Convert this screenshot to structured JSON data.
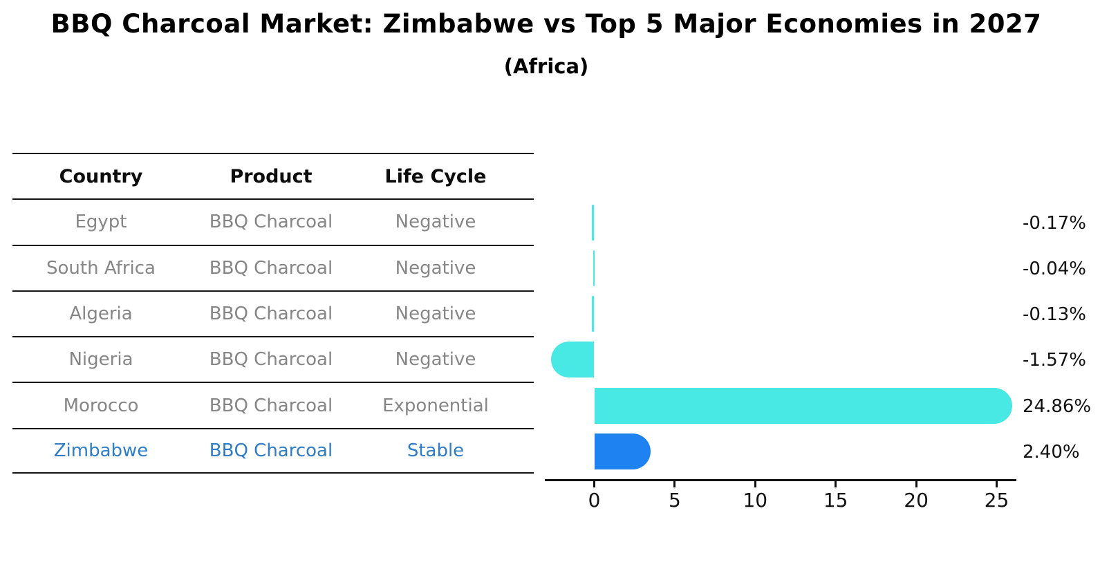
{
  "title": "BBQ Charcoal Market: Zimbabwe vs Top 5 Major Economies in 2027",
  "subtitle": "(Africa)",
  "table": {
    "headers": [
      "Country",
      "Product",
      "Life Cycle"
    ],
    "rows": [
      {
        "country": "Egypt",
        "product": "BBQ Charcoal",
        "life_cycle": "Negative",
        "highlight": false
      },
      {
        "country": "South Africa",
        "product": "BBQ Charcoal",
        "life_cycle": "Negative",
        "highlight": false
      },
      {
        "country": "Algeria",
        "product": "BBQ Charcoal",
        "life_cycle": "Negative",
        "highlight": false
      },
      {
        "country": "Nigeria",
        "product": "BBQ Charcoal",
        "life_cycle": "Negative",
        "highlight": false
      },
      {
        "country": "Morocco",
        "product": "BBQ Charcoal",
        "life_cycle": "Exponential",
        "highlight": false
      },
      {
        "country": "Zimbabwe",
        "product": "BBQ Charcoal",
        "life_cycle": "Stable",
        "highlight": true
      }
    ]
  },
  "chart_data": {
    "type": "bar",
    "orientation": "horizontal",
    "title": "BBQ Charcoal Market: Zimbabwe vs Top 5 Major Economies in 2027",
    "subtitle": "(Africa)",
    "categories": [
      "Egypt",
      "South Africa",
      "Algeria",
      "Nigeria",
      "Morocco",
      "Zimbabwe"
    ],
    "values": [
      -0.17,
      -0.04,
      -0.13,
      -1.57,
      24.86,
      2.4
    ],
    "value_labels": [
      "-0.17%",
      "-0.04%",
      "-0.13%",
      "-1.57%",
      "24.86%",
      "2.40%"
    ],
    "x_ticks": [
      0,
      5,
      10,
      15,
      20,
      25
    ],
    "xlim": [
      -3.1,
      26.2
    ],
    "grid": false,
    "legend": "none",
    "bar_colors": [
      "#48e8e4",
      "#48e8e4",
      "#48e8e4",
      "#48e8e4",
      "#48e8e4",
      "#1e82f0"
    ],
    "highlight_index": 5,
    "highlight_edge_style": "dotted"
  },
  "colors": {
    "default_bar": "#48e8e4",
    "highlight_bar": "#1e82f0",
    "highlight_text": "#2e7dc6",
    "table_text": "#868686",
    "header_text": "#0d0d0d",
    "axis": "#111111"
  }
}
